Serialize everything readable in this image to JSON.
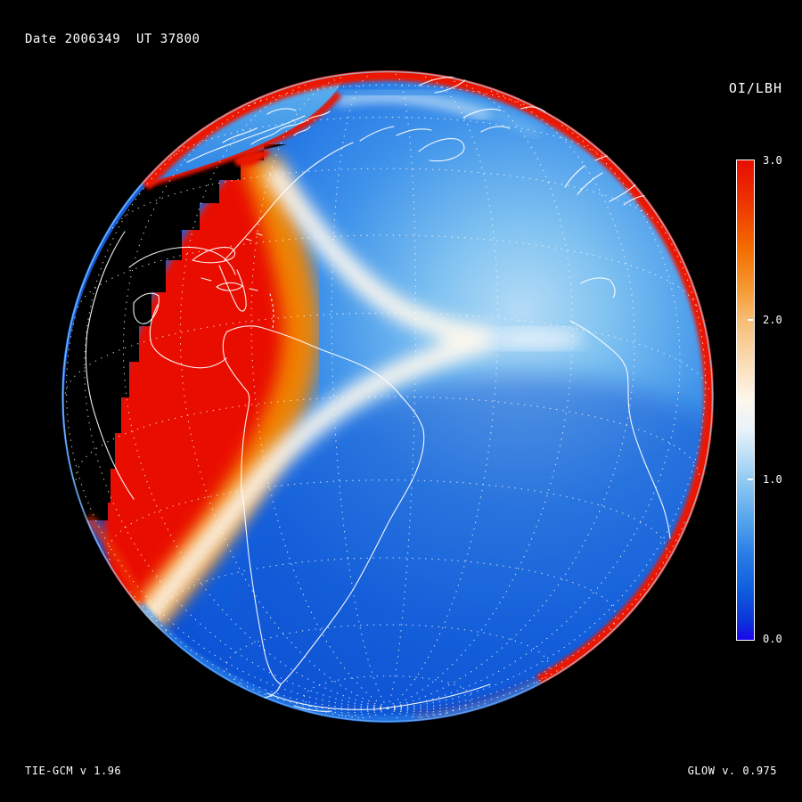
{
  "header": {
    "date_ut": "Date 2006349  UT 37800"
  },
  "colorbar": {
    "title": "OI/LBH",
    "tick_labels": [
      "3.0",
      "2.0",
      "1.0",
      "0.0"
    ],
    "range_min": 0.0,
    "range_max": 3.0,
    "gradient_colors": [
      "#e60d00",
      "#f36a00",
      "#f6bb72",
      "#fdf6ec",
      "#8ec9f1",
      "#2a7ee6",
      "#1a06ea"
    ]
  },
  "footer": {
    "model_version": "TIE-GCM v 1.96",
    "glow_version": "GLOW v. 0.975"
  },
  "colors": {
    "background": "#000000",
    "limb_rim_red": "#ec1202",
    "emission_red": "#e91100",
    "transition_orange": "#f28400",
    "transition_white": "#fdf8ef",
    "ocean_blue_light": "#7fc2f1",
    "ocean_blue_deep": "#0a49cc",
    "coastline": "#ffffff",
    "graticule": "#fffef2"
  },
  "chart_data": {
    "type": "heatmap",
    "title": "OI/LBH",
    "projection": "orthographic globe centered near 15S, 50W (South America / Atlantic in view)",
    "colorbar": {
      "label": "OI/LBH",
      "min": 0.0,
      "max": 3.0,
      "ticks": [
        3.0,
        2.0,
        1.0,
        0.0
      ],
      "colormap": "diverging red (3.0) - orange - white (~1.5) - light blue - deep blue (0.0)"
    },
    "annotations": [
      "Date 2006349  UT 37800",
      "OI/LBH",
      "TIE-GCM v 1.96",
      "GLOW v. 0.975"
    ],
    "features": [
      "black night-side sector on left of disk with blocky day/night terminator, faint dotted graticule and white coastlines (eastern North America, Gulf of Mexico, Caribbean rim)",
      "large high-ratio red region (OI/LBH ~3) on dusk side over Caribbean and western South America, bounded by orange-to-white chevron transition band whose white apex points east near 15S",
      "day side mostly blue (OI/LBH ~0.5-1.2) over Atlantic, Europe, Africa and southern South America",
      "bright red limb-brightening rim along sunlit edge of disk, fading at bottom; blue-rimmed lower limb",
      "blue polar-cap tongue with red auroral rim along upper-left limb over northern Canada",
      "white dotted latitude/longitude graticule (~15 deg spacing) and white coastlines over the day side"
    ]
  }
}
